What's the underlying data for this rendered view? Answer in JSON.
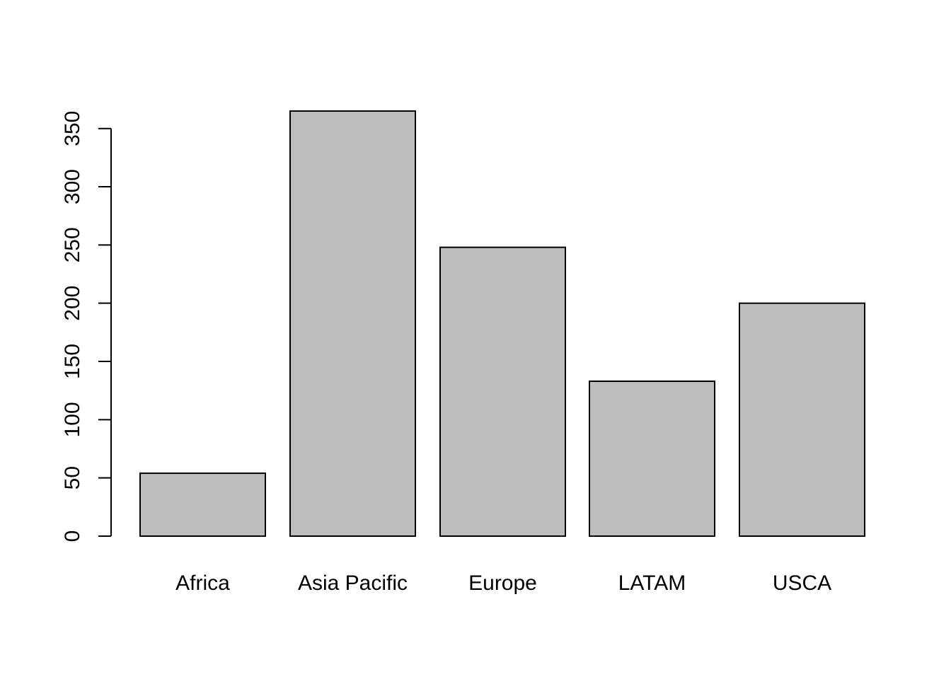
{
  "chart_data": {
    "type": "bar",
    "categories": [
      "Africa",
      "Asia Pacific",
      "Europe",
      "LATAM",
      "USCA"
    ],
    "values": [
      54,
      365,
      248,
      133,
      200
    ],
    "title": "",
    "xlabel": "",
    "ylabel": "",
    "ylim": [
      0,
      365
    ],
    "yticks": [
      0,
      50,
      100,
      150,
      200,
      250,
      300,
      350
    ],
    "ytick_labels": [
      "0",
      "50",
      "100",
      "150",
      "200",
      "250",
      "300",
      "350"
    ],
    "grid": false,
    "bar_color": "#bebebe",
    "border_color": "#000000"
  }
}
